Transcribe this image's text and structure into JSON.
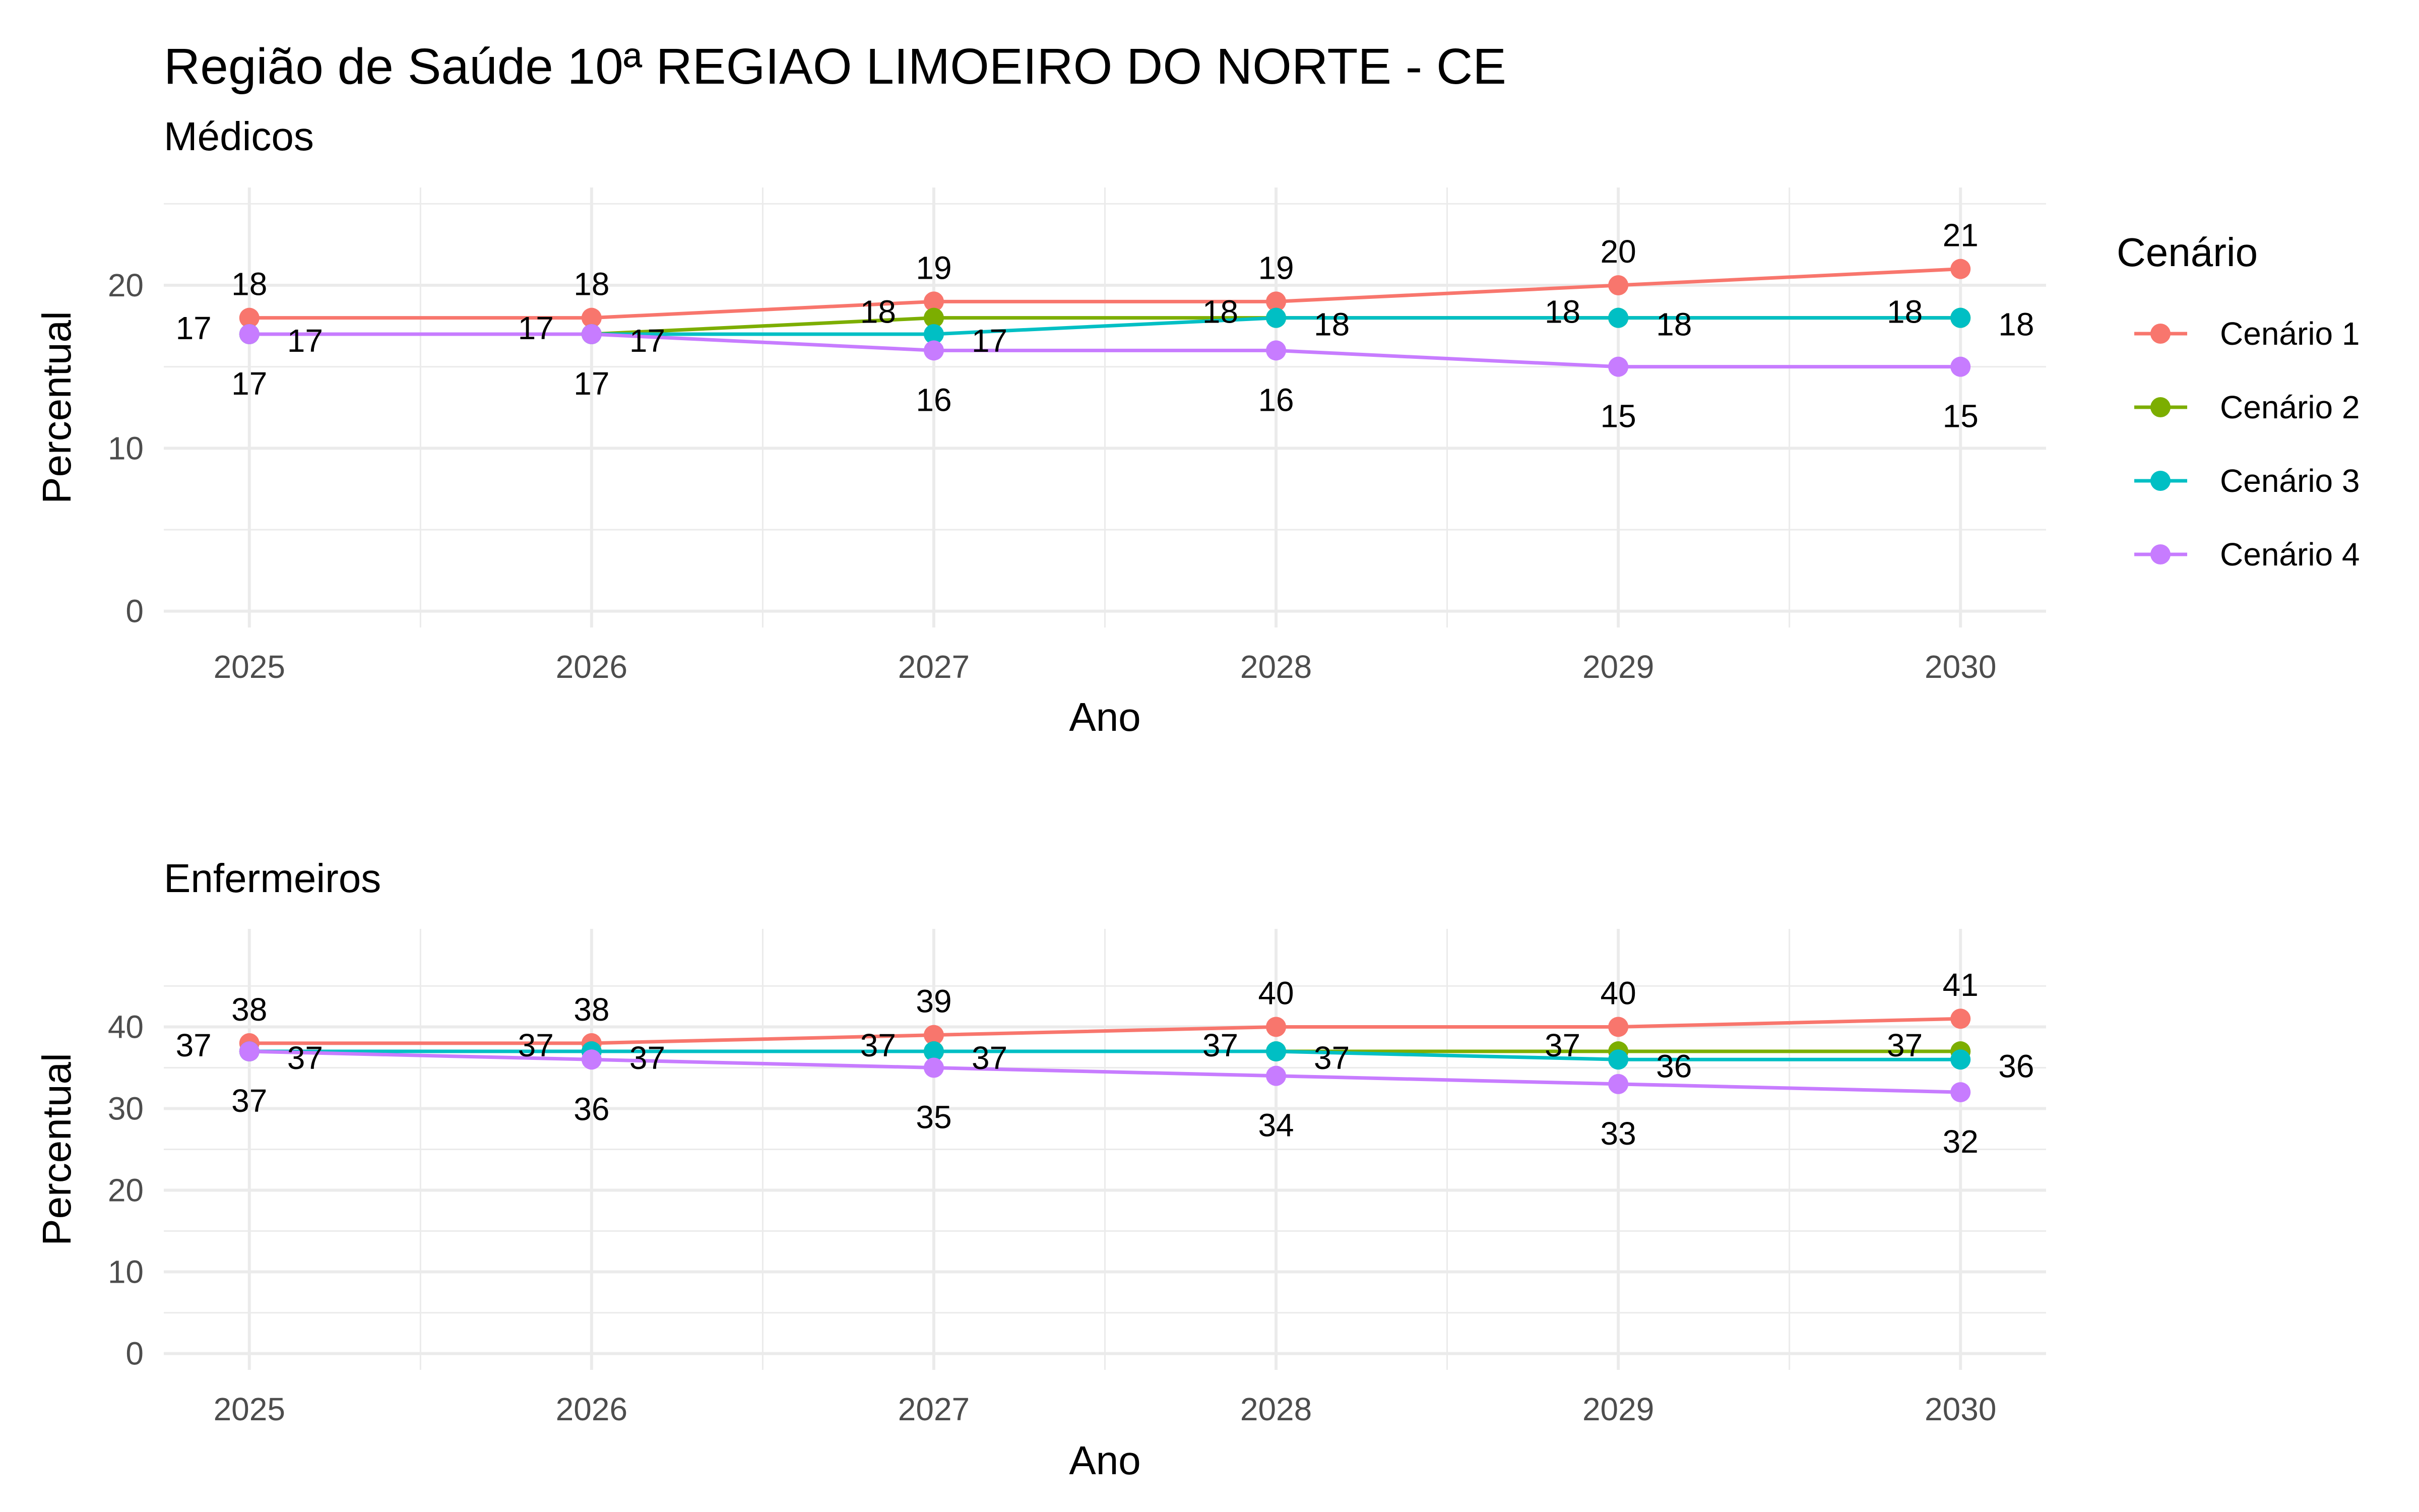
{
  "title": "Região de Saúde 10ª REGIAO LIMOEIRO DO NORTE - CE",
  "legend": {
    "title": "Cenário",
    "position": "right",
    "entries": [
      "Cenário 1",
      "Cenário 2",
      "Cenário 3",
      "Cenário 4"
    ]
  },
  "colors": {
    "Cenário 1": "#F8766D",
    "Cenário 2": "#7CAE00",
    "Cenário 3": "#00BFC4",
    "Cenário 4": "#C77CFF"
  },
  "chart_data": [
    {
      "type": "line",
      "subtitle": "Médicos",
      "xlabel": "Ano",
      "ylabel": "Percentual",
      "x": [
        2025,
        2026,
        2027,
        2028,
        2029,
        2030
      ],
      "xticks": [
        "2025",
        "2026",
        "2027",
        "2028",
        "2029",
        "2030"
      ],
      "yticks": [
        0,
        10,
        20
      ],
      "ylim": [
        -1,
        26
      ],
      "grid": true,
      "series": [
        {
          "name": "Cenário 1",
          "values": [
            18,
            18,
            19,
            19,
            20,
            21
          ]
        },
        {
          "name": "Cenário 2",
          "values": [
            17,
            17,
            18,
            18,
            18,
            18
          ]
        },
        {
          "name": "Cenário 3",
          "values": [
            17,
            17,
            17,
            18,
            18,
            18
          ]
        },
        {
          "name": "Cenário 4",
          "values": [
            17,
            17,
            16,
            16,
            15,
            15
          ]
        }
      ]
    },
    {
      "type": "line",
      "subtitle": "Enfermeiros",
      "xlabel": "Ano",
      "ylabel": "Percentual",
      "x": [
        2025,
        2026,
        2027,
        2028,
        2029,
        2030
      ],
      "xticks": [
        "2025",
        "2026",
        "2027",
        "2028",
        "2029",
        "2030"
      ],
      "yticks": [
        0,
        10,
        20,
        30,
        40
      ],
      "ylim": [
        -2,
        52
      ],
      "grid": true,
      "series": [
        {
          "name": "Cenário 1",
          "values": [
            38,
            38,
            39,
            40,
            40,
            41
          ]
        },
        {
          "name": "Cenário 2",
          "values": [
            37,
            37,
            37,
            37,
            37,
            37
          ]
        },
        {
          "name": "Cenário 3",
          "values": [
            37,
            37,
            37,
            37,
            36,
            36
          ]
        },
        {
          "name": "Cenário 4",
          "values": [
            37,
            36,
            35,
            34,
            33,
            32
          ]
        }
      ]
    }
  ]
}
